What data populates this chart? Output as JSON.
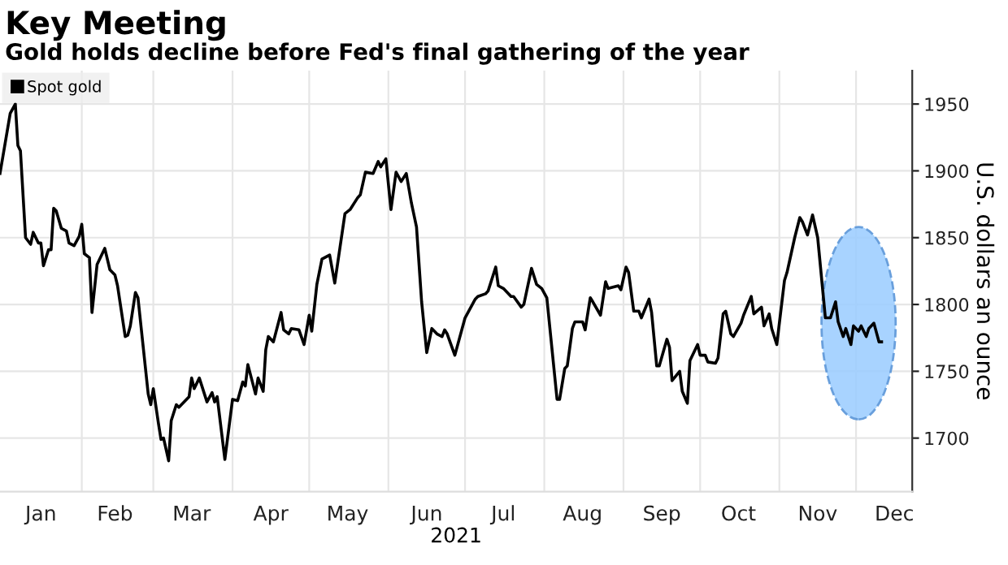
{
  "chart_data": {
    "type": "line",
    "title": "Key Meeting",
    "subtitle": "Gold holds decline before Fed's final gathering of the year",
    "xlabel": "2021",
    "ylabel": "U.S. dollars an ounce",
    "xlim": [
      "2020-12-31",
      "2021-12-23"
    ],
    "ylim": [
      1660,
      1975
    ],
    "yticks": [
      1700,
      1750,
      1800,
      1850,
      1900,
      1950
    ],
    "xticks": [
      {
        "value": "2021-01-16",
        "label": "Jan"
      },
      {
        "value": "2021-02-01",
        "label": null
      },
      {
        "value": "2021-02-14",
        "label": "Feb"
      },
      {
        "value": "2021-03-01",
        "label": null
      },
      {
        "value": "2021-03-16",
        "label": "Mar"
      },
      {
        "value": "2021-04-01",
        "label": null
      },
      {
        "value": "2021-04-16",
        "label": "Apr"
      },
      {
        "value": "2021-05-01",
        "label": null
      },
      {
        "value": "2021-05-16",
        "label": "May"
      },
      {
        "value": "2021-06-01",
        "label": null
      },
      {
        "value": "2021-06-16",
        "label": "Jun"
      },
      {
        "value": "2021-07-01",
        "label": null
      },
      {
        "value": "2021-07-16",
        "label": "Jul"
      },
      {
        "value": "2021-08-01",
        "label": null
      },
      {
        "value": "2021-08-16",
        "label": "Aug"
      },
      {
        "value": "2021-09-01",
        "label": null
      },
      {
        "value": "2021-09-16",
        "label": "Sep"
      },
      {
        "value": "2021-10-01",
        "label": null
      },
      {
        "value": "2021-10-16",
        "label": "Oct"
      },
      {
        "value": "2021-11-01",
        "label": null
      },
      {
        "value": "2021-11-16",
        "label": "Nov"
      },
      {
        "value": "2021-12-01",
        "label": null
      },
      {
        "value": "2021-12-16",
        "label": "Dec"
      }
    ],
    "grid": true,
    "legend": "top left",
    "marker": "none",
    "line_style": "solid",
    "series": [
      {
        "name": "Spot gold",
        "color": "#000000",
        "x": [
          "2020-12-31",
          "2021-01-04",
          "2021-01-06",
          "2021-01-07",
          "2021-01-08",
          "2021-01-10",
          "2021-01-12",
          "2021-01-13",
          "2021-01-15",
          "2021-01-16",
          "2021-01-17",
          "2021-01-19",
          "2021-01-20",
          "2021-01-21",
          "2021-01-22",
          "2021-01-24",
          "2021-01-26",
          "2021-01-27",
          "2021-01-29",
          "2021-01-31",
          "2021-02-01",
          "2021-02-02",
          "2021-02-04",
          "2021-02-05",
          "2021-02-07",
          "2021-02-10",
          "2021-02-12",
          "2021-02-14",
          "2021-02-15",
          "2021-02-18",
          "2021-02-19",
          "2021-02-20",
          "2021-02-22",
          "2021-02-23",
          "2021-02-27",
          "2021-02-28",
          "2021-03-01",
          "2021-03-03",
          "2021-03-04",
          "2021-03-05",
          "2021-03-07",
          "2021-03-08",
          "2021-03-10",
          "2021-03-11",
          "2021-03-15",
          "2021-03-16",
          "2021-03-17",
          "2021-03-19",
          "2021-03-22",
          "2021-03-24",
          "2021-03-25",
          "2021-03-26",
          "2021-03-29",
          "2021-04-01",
          "2021-04-03",
          "2021-04-05",
          "2021-04-06",
          "2021-04-07",
          "2021-04-10",
          "2021-04-11",
          "2021-04-13",
          "2021-04-14",
          "2021-04-15",
          "2021-04-17",
          "2021-04-20",
          "2021-04-21",
          "2021-04-23",
          "2021-04-24",
          "2021-04-27",
          "2021-04-29",
          "2021-05-01",
          "2021-05-02",
          "2021-05-04",
          "2021-05-06",
          "2021-05-09",
          "2021-05-11",
          "2021-05-13",
          "2021-05-15",
          "2021-05-17",
          "2021-05-20",
          "2021-05-21",
          "2021-05-23",
          "2021-05-26",
          "2021-05-28",
          "2021-05-29",
          "2021-05-31",
          "2021-06-02",
          "2021-06-04",
          "2021-06-06",
          "2021-06-08",
          "2021-06-10",
          "2021-06-12",
          "2021-06-14",
          "2021-06-16",
          "2021-06-18",
          "2021-06-20",
          "2021-06-22",
          "2021-06-23",
          "2021-06-24",
          "2021-06-27",
          "2021-07-01",
          "2021-07-05",
          "2021-07-06",
          "2021-07-09",
          "2021-07-10",
          "2021-07-13",
          "2021-07-14",
          "2021-07-16",
          "2021-07-19",
          "2021-07-20",
          "2021-07-23",
          "2021-07-24",
          "2021-07-27",
          "2021-07-29",
          "2021-07-31",
          "2021-08-02",
          "2021-08-06",
          "2021-08-07",
          "2021-08-09",
          "2021-08-10",
          "2021-08-12",
          "2021-08-13",
          "2021-08-16",
          "2021-08-17",
          "2021-08-19",
          "2021-08-20",
          "2021-08-23",
          "2021-08-25",
          "2021-08-26",
          "2021-08-30",
          "2021-08-31",
          "2021-09-02",
          "2021-09-03",
          "2021-09-05",
          "2021-09-07",
          "2021-09-08",
          "2021-09-11",
          "2021-09-12",
          "2021-09-14",
          "2021-09-15",
          "2021-09-18",
          "2021-09-19",
          "2021-09-20",
          "2021-09-23",
          "2021-09-24",
          "2021-09-26",
          "2021-09-27",
          "2021-09-30",
          "2021-10-01",
          "2021-10-03",
          "2021-10-04",
          "2021-10-07",
          "2021-10-08",
          "2021-10-10",
          "2021-10-11",
          "2021-10-13",
          "2021-10-14",
          "2021-10-17",
          "2021-10-18",
          "2021-10-21",
          "2021-10-22",
          "2021-10-25",
          "2021-10-26",
          "2021-10-28",
          "2021-10-29",
          "2021-10-31",
          "2021-11-03",
          "2021-11-04",
          "2021-11-07",
          "2021-11-09",
          "2021-11-10",
          "2021-11-12",
          "2021-11-14",
          "2021-11-16",
          "2021-11-19",
          "2021-11-21",
          "2021-11-23",
          "2021-11-24",
          "2021-11-26",
          "2021-11-27",
          "2021-11-29",
          "2021-11-30",
          "2021-12-02",
          "2021-12-03",
          "2021-12-05",
          "2021-12-06",
          "2021-12-08",
          "2021-12-10",
          "2021-12-11"
        ],
        "values": [
          1898,
          1943,
          1950,
          1919,
          1915,
          1850,
          1845,
          1854,
          1846,
          1846,
          1829,
          1841,
          1841,
          1872,
          1870,
          1857,
          1855,
          1846,
          1844,
          1851,
          1860,
          1838,
          1835,
          1794,
          1830,
          1842,
          1826,
          1822,
          1814,
          1776,
          1777,
          1784,
          1809,
          1805,
          1733,
          1725,
          1737,
          1711,
          1699,
          1700,
          1683,
          1713,
          1725,
          1723,
          1731,
          1745,
          1737,
          1745,
          1727,
          1734,
          1727,
          1731,
          1684,
          1729,
          1728,
          1742,
          1739,
          1755,
          1733,
          1745,
          1735,
          1766,
          1776,
          1772,
          1794,
          1781,
          1778,
          1782,
          1781,
          1770,
          1792,
          1780,
          1815,
          1834,
          1837,
          1816,
          1842,
          1868,
          1871,
          1880,
          1882,
          1899,
          1898,
          1907,
          1903,
          1909,
          1871,
          1899,
          1892,
          1898,
          1876,
          1858,
          1802,
          1764,
          1782,
          1778,
          1776,
          1781,
          1778,
          1762,
          1790,
          1804,
          1806,
          1808,
          1810,
          1828,
          1814,
          1812,
          1806,
          1806,
          1798,
          1800,
          1827,
          1815,
          1812,
          1805,
          1729,
          1729,
          1752,
          1754,
          1782,
          1787,
          1787,
          1781,
          1805,
          1802,
          1792,
          1817,
          1812,
          1814,
          1811,
          1828,
          1824,
          1795,
          1795,
          1790,
          1804,
          1794,
          1754,
          1754,
          1774,
          1768,
          1743,
          1750,
          1735,
          1726,
          1758,
          1770,
          1762,
          1762,
          1757,
          1756,
          1760,
          1793,
          1795,
          1778,
          1776,
          1786,
          1792,
          1806,
          1793,
          1798,
          1784,
          1793,
          1782,
          1770,
          1818,
          1824,
          1850,
          1865,
          1862,
          1852,
          1867,
          1850,
          1790,
          1790,
          1802,
          1787,
          1776,
          1782,
          1770,
          1784,
          1780,
          1784,
          1776,
          1782,
          1786,
          1772,
          1772
        ]
      }
    ]
  }
}
